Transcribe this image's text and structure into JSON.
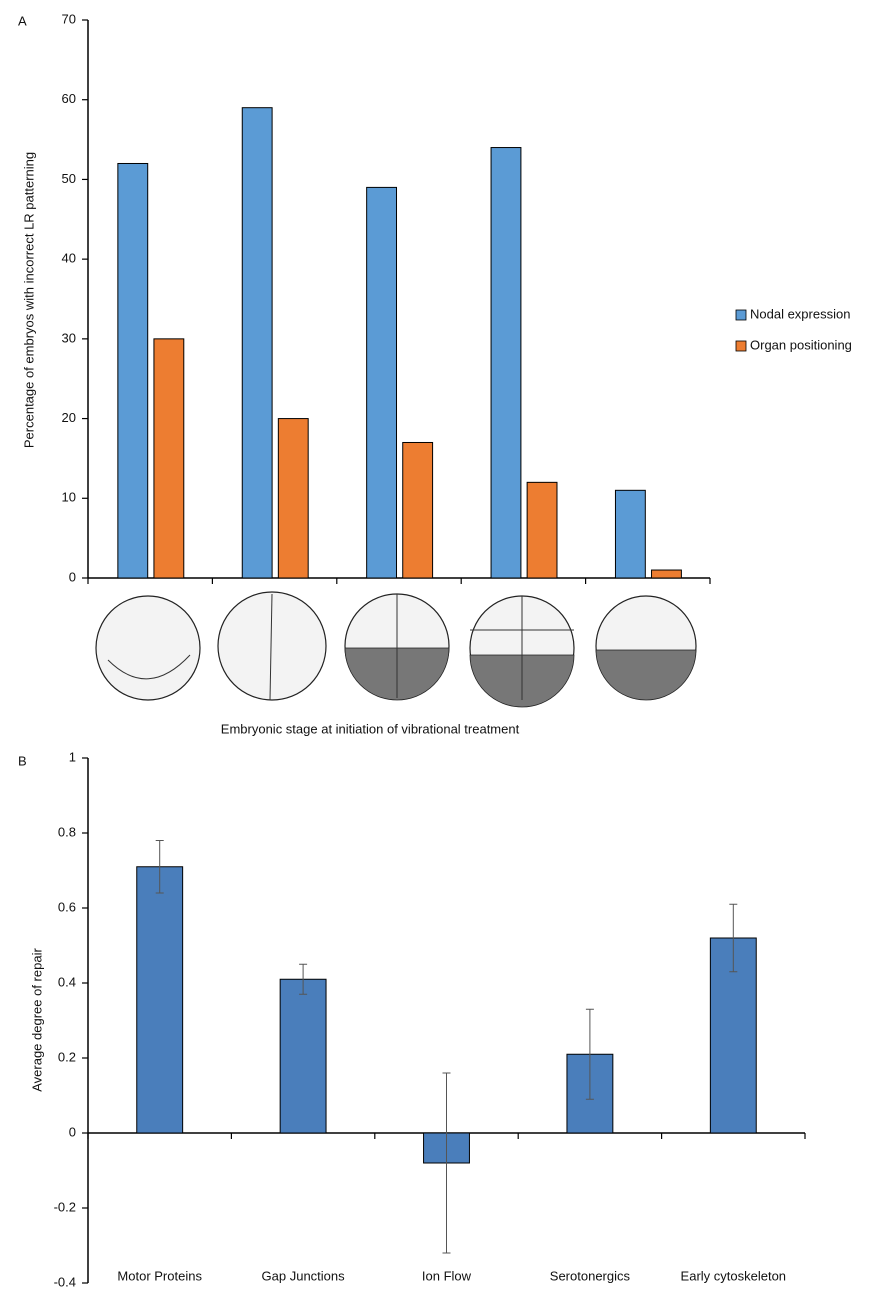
{
  "chart_data": [
    {
      "type": "bar",
      "panel": "A",
      "y_label": "Percentage of embryos with incorrect LR patterning",
      "x_label": "Embryonic stage at initiation of vibrational treatment",
      "categories": [
        null,
        null,
        null,
        null,
        null
      ],
      "series": [
        {
          "name": "Nodal expression",
          "color": "#5b9bd5",
          "values": [
            52,
            59,
            49,
            54,
            11
          ]
        },
        {
          "name": "Organ positioning",
          "color": "#ed7d31",
          "values": [
            30,
            20,
            17,
            12,
            1
          ]
        }
      ],
      "ylim": [
        0,
        70
      ],
      "yticks": [
        0,
        10,
        20,
        30,
        40,
        50,
        60,
        70
      ],
      "grid": false,
      "legend": "right"
    },
    {
      "type": "bar",
      "panel": "B",
      "y_label": "Average degree of repair",
      "categories": [
        "Motor Proteins",
        "Gap Junctions",
        "Ion Flow",
        "Serotonergics",
        "Early cytoskeleton"
      ],
      "series": [
        {
          "color": "#4a7ebb",
          "values": [
            0.71,
            0.41,
            -0.08,
            0.21,
            0.52
          ],
          "errors": [
            0.07,
            0.04,
            0.24,
            0.12,
            0.09
          ]
        }
      ],
      "ylim": [
        -0.4,
        1
      ],
      "yticks": [
        -0.4,
        -0.2,
        0,
        0.2,
        0.4,
        0.6,
        0.8,
        1
      ],
      "grid": false
    }
  ]
}
